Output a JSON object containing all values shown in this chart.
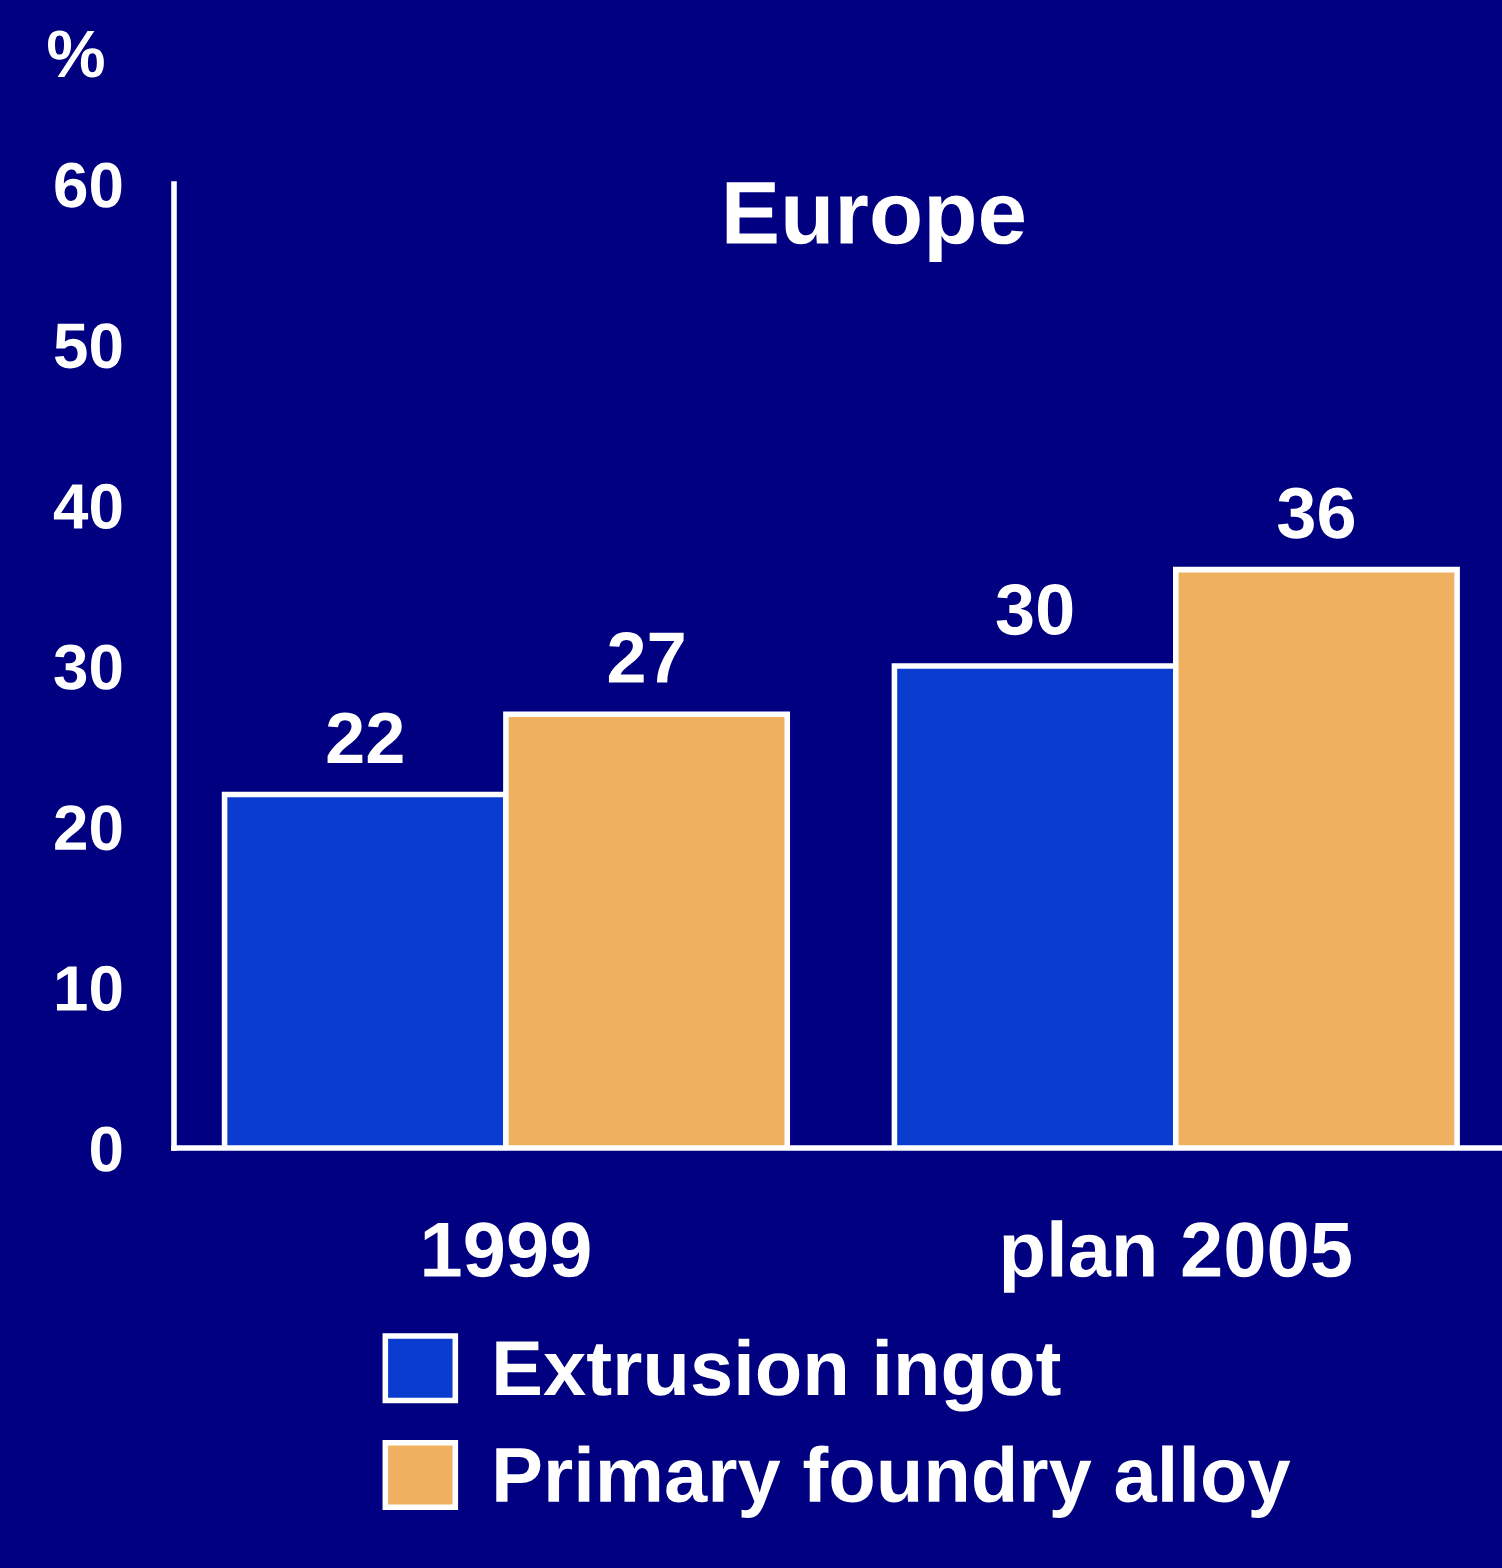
{
  "chart_data": {
    "type": "bar",
    "title": "Europe",
    "ylabel": "%",
    "categories": [
      "1999",
      "plan 2005"
    ],
    "series": [
      {
        "name": "Extrusion ingot",
        "color": "#0a3cd0",
        "values": [
          22,
          30
        ]
      },
      {
        "name": "Primary foundry alloy",
        "color": "#efb060",
        "values": [
          27,
          36
        ]
      }
    ],
    "ylim": [
      0,
      60
    ],
    "yticks": [
      0,
      10,
      20,
      30,
      40,
      50,
      60
    ],
    "data_labels": true,
    "legend": "bottom",
    "grid": false
  }
}
